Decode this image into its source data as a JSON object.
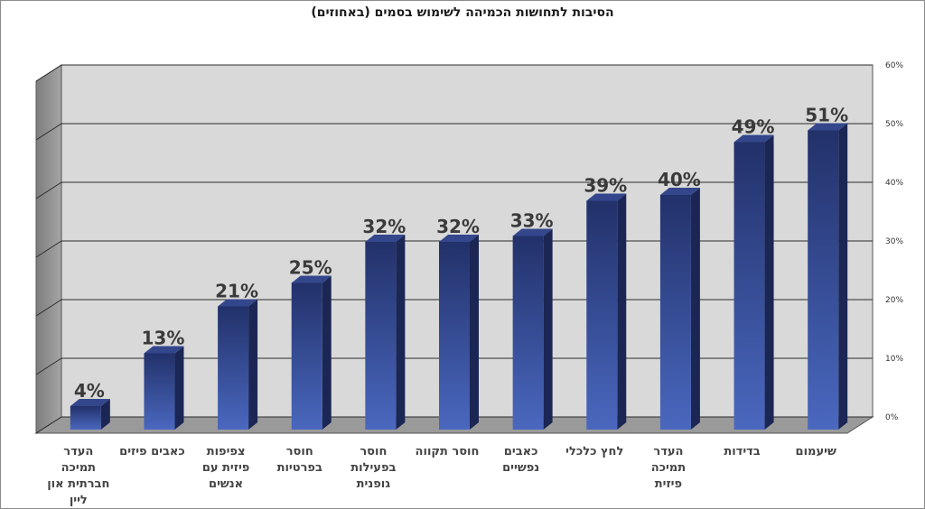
{
  "chart_data": {
    "type": "bar",
    "title": "הסיבות לתחושות הכמיהה לשימוש בסמים (באחוזים)",
    "xlabel": "",
    "ylabel": "",
    "categories": [
      [
        "העדר",
        "תמיכה",
        "חברתית און",
        "ליין"
      ],
      [
        "כאבים פיזים"
      ],
      [
        "צפיפות",
        "פיזית עם",
        "אנשים"
      ],
      [
        "חוסר",
        "בפרטיות"
      ],
      [
        "חוסר",
        "בפעילות",
        "גופנית"
      ],
      [
        "חוסר תקווה"
      ],
      [
        "כאבים",
        "נפשיים"
      ],
      [
        "לחץ כלכלי"
      ],
      [
        "העדר",
        "תמיכה",
        "פיזית"
      ],
      [
        "בדידות"
      ],
      [
        "שיעמום"
      ]
    ],
    "values": [
      4,
      13,
      21,
      25,
      32,
      32,
      33,
      39,
      40,
      49,
      51
    ],
    "data_labels": [
      "4%",
      "13%",
      "21%",
      "25%",
      "32%",
      "32%",
      "33%",
      "39%",
      "40%",
      "49%",
      "51%"
    ],
    "y_ticks": [
      "0%",
      "10%",
      "20%",
      "30%",
      "40%",
      "50%",
      "60%"
    ],
    "ylim": [
      0,
      60
    ],
    "grid": true,
    "legend": "none",
    "colors": {
      "bar_front_top": "#22316a",
      "bar_front_bottom": "#4a68bf",
      "bar_side": "#1b2654",
      "bar_top": "#34478c",
      "back_wall": "#d9d9d9",
      "side_wall": "#8f8f8f",
      "floor": "#9a9a9a"
    }
  }
}
